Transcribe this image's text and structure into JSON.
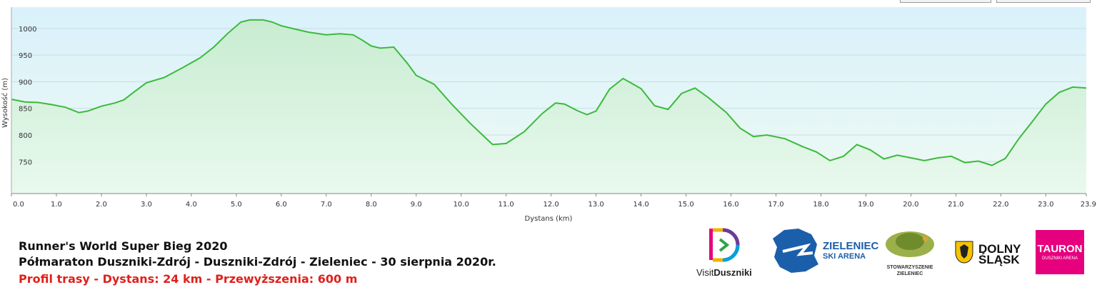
{
  "chart_data": {
    "type": "area",
    "title": "",
    "xlabel": "Dystans (km)",
    "ylabel": "Wysokość (m)",
    "xlim": [
      0,
      23.9
    ],
    "ylim": [
      690,
      1040
    ],
    "x_ticks": [
      0,
      1,
      2,
      3,
      4,
      5,
      6,
      7,
      8,
      9,
      10,
      11,
      12,
      13,
      14,
      15,
      16,
      17,
      18,
      19,
      20,
      21,
      22,
      23,
      23.9
    ],
    "x_tick_labels": [
      "0.0",
      "1.0",
      "2.0",
      "3.0",
      "4.0",
      "5.0",
      "6.0",
      "7.0",
      "8.0",
      "9.0",
      "10.0",
      "11.0",
      "12.0",
      "13.0",
      "14.0",
      "15.0",
      "16.0",
      "17.0",
      "18.0",
      "19.0",
      "20.0",
      "21.0",
      "22.0",
      "23.0",
      "23.9"
    ],
    "y_ticks": [
      750,
      800,
      850,
      900,
      950,
      1000
    ],
    "y_tick_labels": [
      "750",
      "800",
      "850",
      "900",
      "950",
      "1000"
    ],
    "grid": true,
    "color": "#3cba3c",
    "x": [
      0,
      0.3,
      0.6,
      0.9,
      1.2,
      1.5,
      1.7,
      2.0,
      2.3,
      2.5,
      2.7,
      3.0,
      3.4,
      3.8,
      4.2,
      4.5,
      4.8,
      5.1,
      5.3,
      5.6,
      5.8,
      6.0,
      6.3,
      6.6,
      7.0,
      7.3,
      7.6,
      7.8,
      8.0,
      8.2,
      8.5,
      8.8,
      9.0,
      9.4,
      9.8,
      10.2,
      10.5,
      10.7,
      11.0,
      11.4,
      11.8,
      12.1,
      12.3,
      12.6,
      12.8,
      13.0,
      13.3,
      13.6,
      14.0,
      14.3,
      14.6,
      14.9,
      15.2,
      15.5,
      15.9,
      16.2,
      16.5,
      16.8,
      17.2,
      17.6,
      17.9,
      18.2,
      18.5,
      18.8,
      19.1,
      19.4,
      19.7,
      20.0,
      20.3,
      20.6,
      20.9,
      21.2,
      21.5,
      21.8,
      22.1,
      22.4,
      22.7,
      23.0,
      23.3,
      23.6,
      23.9
    ],
    "y": [
      867,
      862,
      861,
      857,
      852,
      842,
      845,
      854,
      860,
      866,
      879,
      898,
      908,
      926,
      945,
      965,
      990,
      1012,
      1016,
      1016,
      1012,
      1005,
      999,
      993,
      988,
      990,
      988,
      978,
      967,
      963,
      965,
      935,
      912,
      895,
      857,
      822,
      798,
      782,
      784,
      806,
      840,
      860,
      858,
      845,
      838,
      845,
      886,
      906,
      887,
      855,
      848,
      878,
      888,
      870,
      842,
      813,
      797,
      800,
      793,
      778,
      768,
      752,
      760,
      782,
      772,
      755,
      762,
      757,
      752,
      757,
      760,
      748,
      751,
      743,
      756,
      793,
      825,
      858,
      880,
      890,
      888
    ]
  },
  "caption": {
    "line1": "Runner's World Super Bieg 2020",
    "line2": "Półmaraton Duszniki-Zdrój - Duszniki-Zdrój - Zieleniec - 30 sierpnia 2020r.",
    "line3": "Profil trasy - Dystans: 24 km - Przewyższenia: 600 m",
    "line3_color": "#e0201b"
  },
  "logos": {
    "visit_prefix": "Visit",
    "visit_name": "Duszniki",
    "zieleniec_line1": "ZIELENIEC",
    "zieleniec_line2": "SKI ARENA",
    "stow_line1": "STOWARZYSZENIE",
    "stow_line2": "ZIELENIEC",
    "dolny_line1": "DOLNY",
    "dolny_line2": "ŚLĄSK",
    "tauron_name": "TAURON",
    "tauron_sub": "DUSZNIKI ARENA",
    "tauron_color": "#e6007e",
    "zieleniec_color": "#1b5fab"
  }
}
